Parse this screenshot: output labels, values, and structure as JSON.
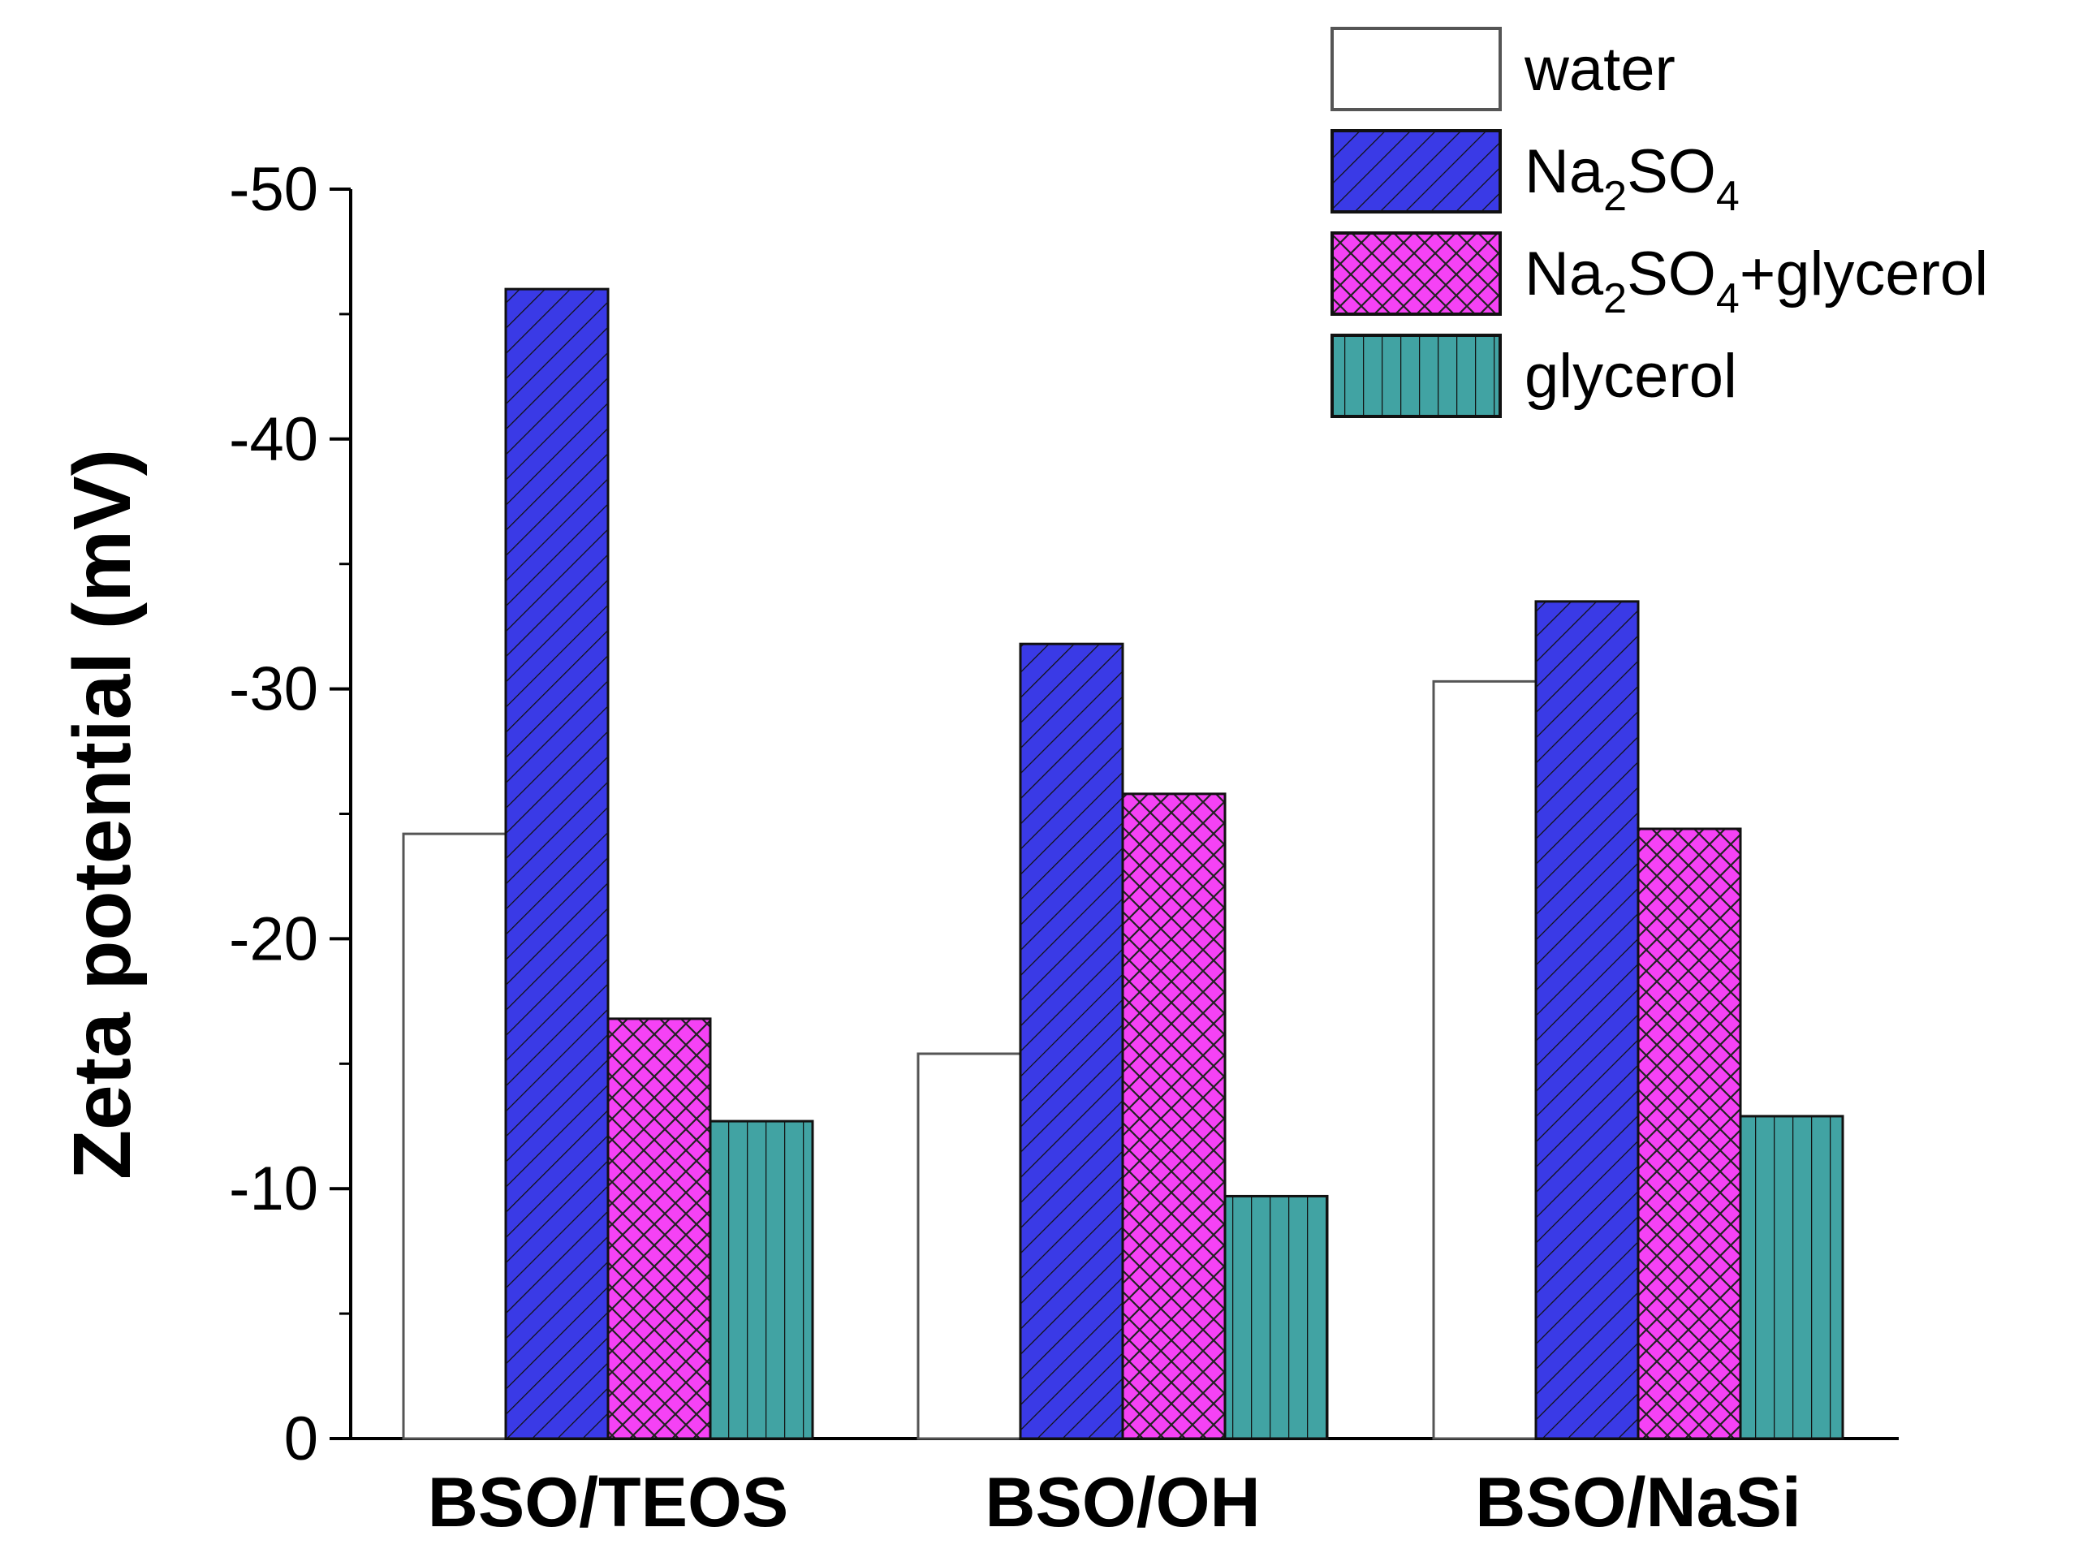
{
  "chart_data": {
    "type": "bar",
    "title": "",
    "xlabel": "",
    "ylabel": "Zeta potential (mV)",
    "categories": [
      "BSO/TEOS",
      "BSO/OH",
      "BSO/NaSi"
    ],
    "ylim": [
      0,
      -50
    ],
    "yticks": [
      "0",
      "-10",
      "-20",
      "-30",
      "-40",
      "-50"
    ],
    "series": [
      {
        "name": "water",
        "label_main": "water",
        "label_sub": [],
        "values": [
          -24.2,
          -15.4,
          -30.3
        ],
        "color": "#ffffff",
        "pattern": "none"
      },
      {
        "name": "Na2SO4",
        "label_main": "Na",
        "label_sub": [
          "2",
          "SO",
          "4"
        ],
        "values": [
          -46.0,
          -31.8,
          -33.5
        ],
        "color": "#3a3ae6",
        "pattern": "diagonal"
      },
      {
        "name": "Na2SO4+glycerol",
        "label_main": "Na",
        "label_sub": [
          "2",
          "SO",
          "4",
          "+glycerol"
        ],
        "values": [
          -16.8,
          -25.8,
          -24.4
        ],
        "color": "#f542f5",
        "pattern": "crosshatch"
      },
      {
        "name": "glycerol",
        "label_main": "glycerol",
        "label_sub": [],
        "values": [
          -12.7,
          -9.7,
          -12.9
        ],
        "color": "#41a3a3",
        "pattern": "vertical"
      }
    ],
    "legend_position": "top-right"
  }
}
